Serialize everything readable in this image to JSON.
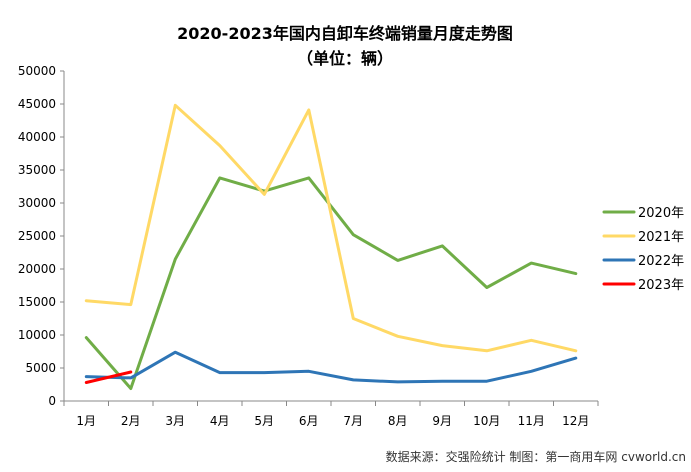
{
  "chart_data": {
    "type": "line",
    "title": "2020-2023年国内自卸车终端销量月度走势图",
    "subtitle": "（单位：辆）",
    "categories": [
      "1月",
      "2月",
      "3月",
      "4月",
      "5月",
      "6月",
      "7月",
      "8月",
      "9月",
      "10月",
      "11月",
      "12月"
    ],
    "series": [
      {
        "name": "2020年",
        "color": "#70ad47",
        "values": [
          9600,
          1900,
          21500,
          33800,
          31800,
          33800,
          25200,
          21300,
          23500,
          17200,
          20900,
          19300
        ]
      },
      {
        "name": "2021年",
        "color": "#ffd966",
        "values": [
          15200,
          14600,
          44800,
          38700,
          31300,
          44100,
          12500,
          9800,
          8400,
          7600,
          9200,
          7600
        ]
      },
      {
        "name": "2022年",
        "color": "#2e75b6",
        "values": [
          3700,
          3500,
          7400,
          4300,
          4300,
          4500,
          3200,
          2900,
          3000,
          3000,
          4500,
          6500
        ]
      },
      {
        "name": "2023年",
        "color": "#ff0000",
        "values": [
          2800,
          4400,
          null,
          null,
          null,
          null,
          null,
          null,
          null,
          null,
          null,
          null
        ]
      }
    ],
    "ylim": [
      0,
      50000
    ],
    "yticks": [
      0,
      5000,
      10000,
      15000,
      20000,
      25000,
      30000,
      35000,
      40000,
      45000,
      50000
    ],
    "xlabel": "",
    "ylabel": "",
    "grid": false,
    "legend_position": "right"
  },
  "source_note": "数据来源：交强险统计   制图：第一商用车网 cvworld.cn"
}
